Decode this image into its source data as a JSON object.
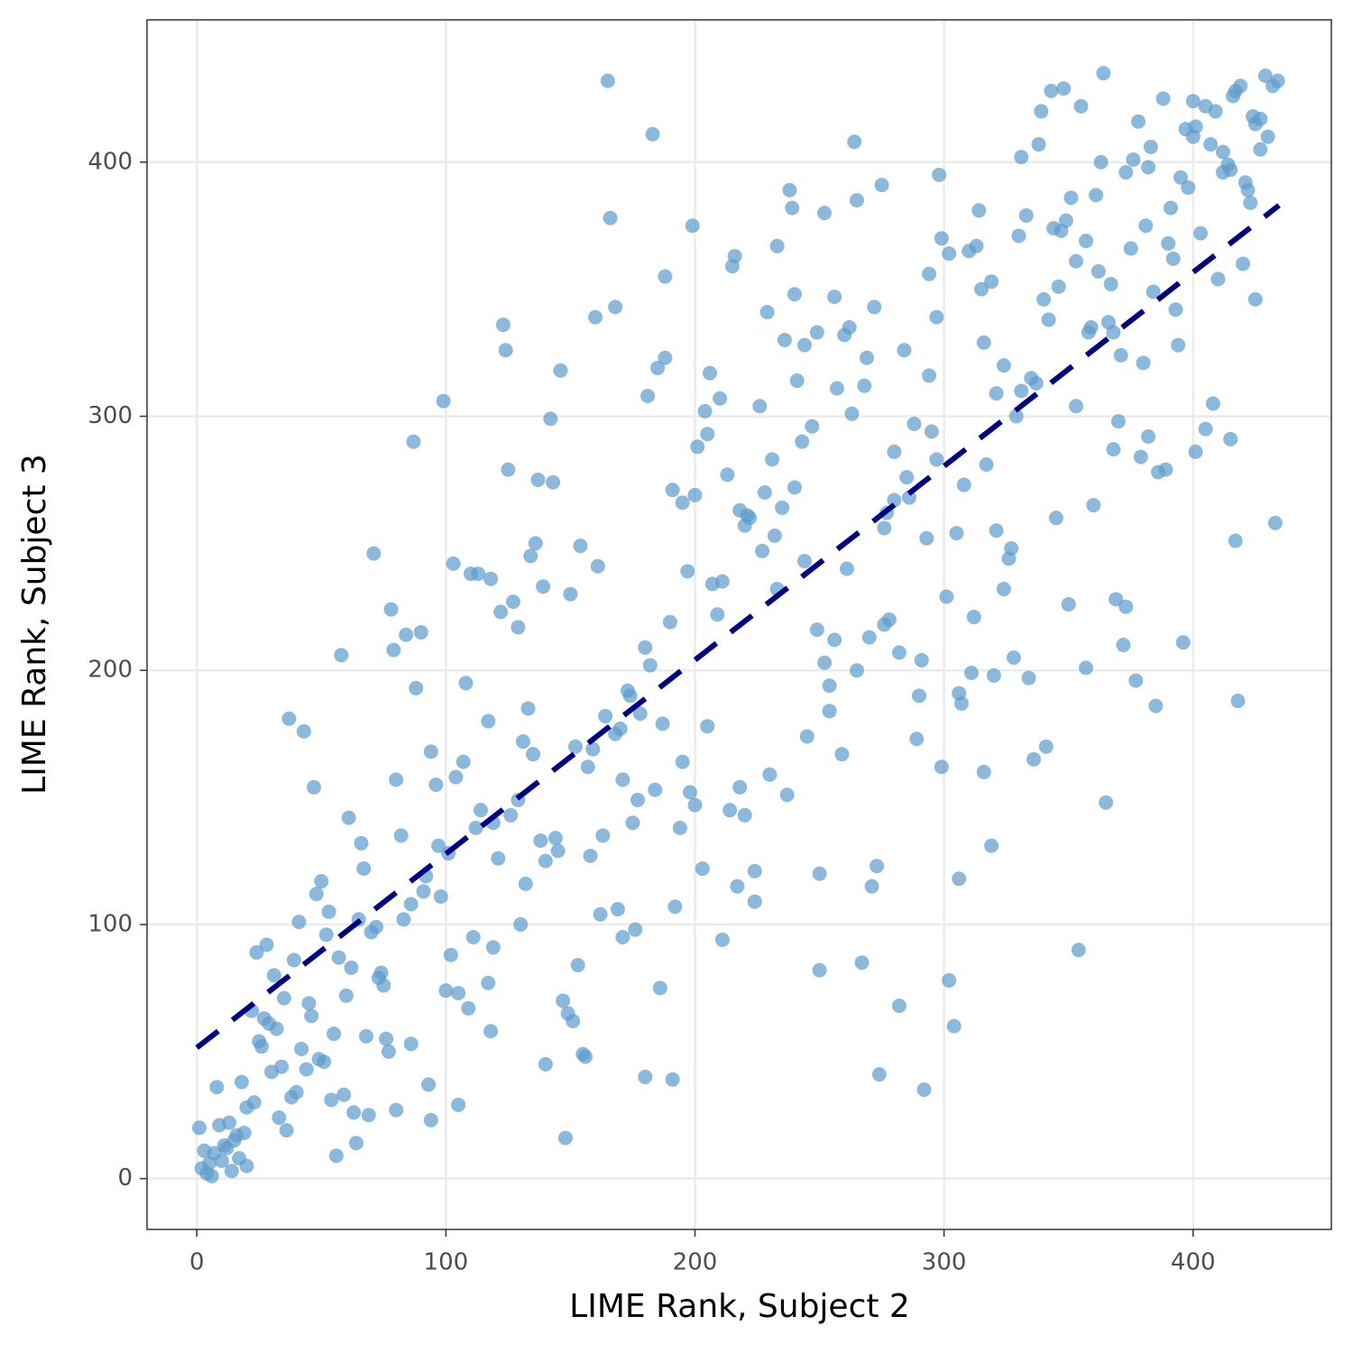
{
  "chart_data": {
    "type": "scatter",
    "x_label": "LIME Rank, Subject 2",
    "y_label": "LIME Rank, Subject 3",
    "xlim": [
      -20,
      455.5
    ],
    "ylim": [
      -20,
      456
    ],
    "xticks": [
      0,
      100,
      200,
      300,
      400
    ],
    "yticks": [
      0,
      100,
      200,
      300,
      400
    ],
    "grid": true,
    "point_color": "#5b9bcc",
    "point_opacity": 0.7,
    "x": [
      165,
      183,
      166,
      168,
      160,
      123,
      124,
      146,
      99,
      142,
      87,
      125,
      137,
      143,
      136,
      154,
      134,
      71,
      103,
      161,
      110,
      113,
      118,
      139,
      150,
      127,
      122,
      78,
      129,
      90,
      84,
      79,
      58,
      88,
      108,
      133,
      117,
      37,
      43,
      131,
      135,
      94,
      107,
      152,
      159,
      157,
      47,
      96,
      104,
      80,
      129,
      126,
      114,
      119,
      112,
      61,
      66,
      82,
      138,
      144,
      145,
      140,
      121,
      97,
      101,
      158,
      163,
      67,
      92,
      50,
      132,
      91,
      48,
      98,
      86,
      53,
      41,
      83,
      65,
      130,
      72,
      70,
      52,
      111,
      119,
      24,
      28,
      39,
      57,
      102,
      62,
      153,
      31,
      74,
      73,
      75,
      117,
      100,
      105,
      35,
      60,
      45,
      147,
      109,
      22,
      46,
      149,
      27,
      29,
      151,
      32,
      118,
      55,
      68,
      76,
      25,
      26,
      86,
      42,
      77,
      155,
      156,
      49,
      51,
      34,
      44,
      30,
      140,
      180,
      191,
      93,
      8,
      18,
      40,
      59,
      38,
      54,
      23,
      105,
      20,
      80,
      63,
      69,
      33,
      94,
      13,
      9,
      1,
      36,
      19,
      16,
      148,
      15,
      64,
      11,
      12,
      3,
      7,
      56,
      17,
      10,
      5,
      20,
      2,
      14,
      4,
      6,
      364,
      429,
      434,
      419,
      417,
      432,
      348,
      343,
      355,
      416,
      388,
      400,
      409,
      405,
      339,
      378,
      424,
      427,
      401,
      397,
      400,
      425,
      430,
      407,
      338,
      264,
      383,
      427,
      412,
      331,
      376,
      414,
      363,
      415,
      382,
      373,
      412,
      298,
      395,
      421,
      398,
      275,
      422,
      238,
      361,
      351,
      265,
      423,
      391,
      239,
      314,
      252,
      333,
      349,
      344,
      347,
      199,
      381,
      403,
      330,
      299,
      357,
      390,
      313,
      233,
      375,
      310,
      302,
      216,
      392,
      353,
      420,
      215,
      362,
      294,
      188,
      410,
      319,
      367,
      346,
      315,
      384,
      240,
      256,
      340,
      425,
      393,
      229,
      272,
      297,
      342,
      366,
      262,
      359,
      358,
      249,
      260,
      236,
      368,
      316,
      394,
      244,
      284,
      371,
      269,
      188,
      380,
      324,
      185,
      206,
      294,
      335,
      337,
      241,
      268,
      257,
      331,
      321,
      181,
      210,
      408,
      353,
      226,
      204,
      263,
      329,
      370,
      288,
      247,
      405,
      295,
      205,
      382,
      243,
      415,
      201,
      368,
      280,
      401,
      379,
      231,
      297,
      317,
      389,
      386,
      213,
      285,
      308,
      240,
      191,
      228,
      200,
      286,
      280,
      195,
      360,
      235,
      218,
      277,
      221,
      345,
      222,
      220,
      276,
      321,
      305,
      232,
      293,
      417,
      327,
      227,
      326,
      244,
      261,
      197,
      211,
      207,
      324,
      233,
      301,
      369,
      350,
      373,
      209,
      312,
      278,
      276,
      190,
      249,
      270,
      256,
      180,
      372,
      396,
      282,
      328,
      252,
      182,
      357,
      265,
      311,
      320,
      334,
      377,
      291,
      254,
      173,
      306,
      174,
      290,
      418,
      307,
      385,
      254,
      178,
      164,
      205,
      187,
      168,
      170,
      245,
      289,
      341,
      259,
      336,
      195,
      299,
      230,
      316,
      171,
      184,
      218,
      237,
      198,
      177,
      200,
      365,
      214,
      220,
      175,
      194,
      319,
      273,
      203,
      224,
      250,
      306,
      271,
      217,
      169,
      224,
      192,
      162,
      176,
      171,
      211,
      354,
      267,
      250,
      302,
      186,
      282,
      304,
      274,
      292,
      433
    ],
    "y": [
      432,
      411,
      378,
      343,
      339,
      336,
      326,
      318,
      306,
      299,
      290,
      279,
      275,
      274,
      250,
      249,
      245,
      246,
      242,
      241,
      238,
      238,
      236,
      233,
      230,
      227,
      223,
      224,
      217,
      215,
      214,
      208,
      206,
      193,
      195,
      185,
      180,
      181,
      176,
      172,
      167,
      168,
      164,
      170,
      169,
      162,
      154,
      155,
      158,
      157,
      149,
      143,
      145,
      140,
      138,
      142,
      132,
      135,
      133,
      134,
      129,
      125,
      126,
      131,
      128,
      127,
      135,
      122,
      119,
      117,
      116,
      113,
      112,
      111,
      108,
      105,
      101,
      102,
      102,
      100,
      99,
      97,
      96,
      95,
      91,
      89,
      92,
      86,
      87,
      88,
      83,
      84,
      80,
      81,
      79,
      76,
      77,
      74,
      73,
      71,
      72,
      69,
      70,
      67,
      66,
      64,
      65,
      63,
      61,
      62,
      59,
      58,
      57,
      56,
      55,
      54,
      52,
      53,
      51,
      50,
      49,
      48,
      47,
      46,
      44,
      43,
      42,
      45,
      40,
      39,
      37,
      36,
      38,
      34,
      33,
      32,
      31,
      30,
      29,
      28,
      27,
      26,
      25,
      24,
      23,
      22,
      21,
      20,
      19,
      18,
      17,
      16,
      15,
      14,
      13,
      12,
      11,
      10,
      9,
      8,
      7,
      6,
      5,
      4,
      3,
      2,
      1,
      435,
      434,
      432,
      430,
      428,
      430,
      429,
      428,
      422,
      426,
      425,
      424,
      420,
      422,
      420,
      416,
      418,
      417,
      414,
      413,
      410,
      415,
      410,
      407,
      407,
      408,
      406,
      405,
      404,
      402,
      401,
      399,
      400,
      397,
      398,
      396,
      396,
      395,
      394,
      392,
      390,
      391,
      389,
      389,
      387,
      386,
      385,
      384,
      382,
      382,
      381,
      380,
      379,
      377,
      374,
      373,
      375,
      375,
      372,
      371,
      370,
      369,
      368,
      367,
      367,
      366,
      365,
      364,
      363,
      362,
      361,
      360,
      359,
      357,
      356,
      355,
      354,
      353,
      352,
      351,
      350,
      349,
      348,
      347,
      346,
      346,
      342,
      341,
      343,
      339,
      338,
      337,
      335,
      335,
      333,
      333,
      332,
      330,
      333,
      329,
      328,
      328,
      326,
      324,
      323,
      323,
      321,
      320,
      319,
      317,
      316,
      315,
      313,
      314,
      312,
      311,
      310,
      309,
      308,
      307,
      305,
      304,
      304,
      302,
      301,
      300,
      298,
      297,
      296,
      295,
      294,
      293,
      292,
      290,
      291,
      288,
      287,
      286,
      286,
      284,
      283,
      283,
      281,
      279,
      278,
      277,
      276,
      273,
      272,
      271,
      270,
      269,
      268,
      267,
      266,
      265,
      264,
      263,
      262,
      261,
      260,
      260,
      257,
      256,
      255,
      254,
      253,
      252,
      251,
      248,
      247,
      244,
      243,
      240,
      239,
      235,
      234,
      232,
      232,
      229,
      228,
      226,
      225,
      222,
      221,
      220,
      218,
      219,
      216,
      213,
      212,
      209,
      210,
      211,
      207,
      205,
      203,
      202,
      201,
      200,
      199,
      198,
      197,
      196,
      204,
      194,
      192,
      191,
      190,
      190,
      188,
      187,
      186,
      184,
      183,
      182,
      178,
      179,
      175,
      177,
      174,
      173,
      170,
      167,
      165,
      164,
      162,
      159,
      160,
      157,
      153,
      154,
      151,
      152,
      149,
      147,
      148,
      145,
      143,
      140,
      138,
      131,
      123,
      122,
      121,
      120,
      118,
      115,
      115,
      106,
      109,
      107,
      104,
      98,
      95,
      94,
      90,
      85,
      82,
      78,
      75,
      68,
      60,
      41,
      35,
      258
    ],
    "fit_line": {
      "color": "#000080",
      "dashed": true,
      "x": [
        0,
        434.5
      ],
      "y": [
        51.5,
        383
      ]
    }
  }
}
